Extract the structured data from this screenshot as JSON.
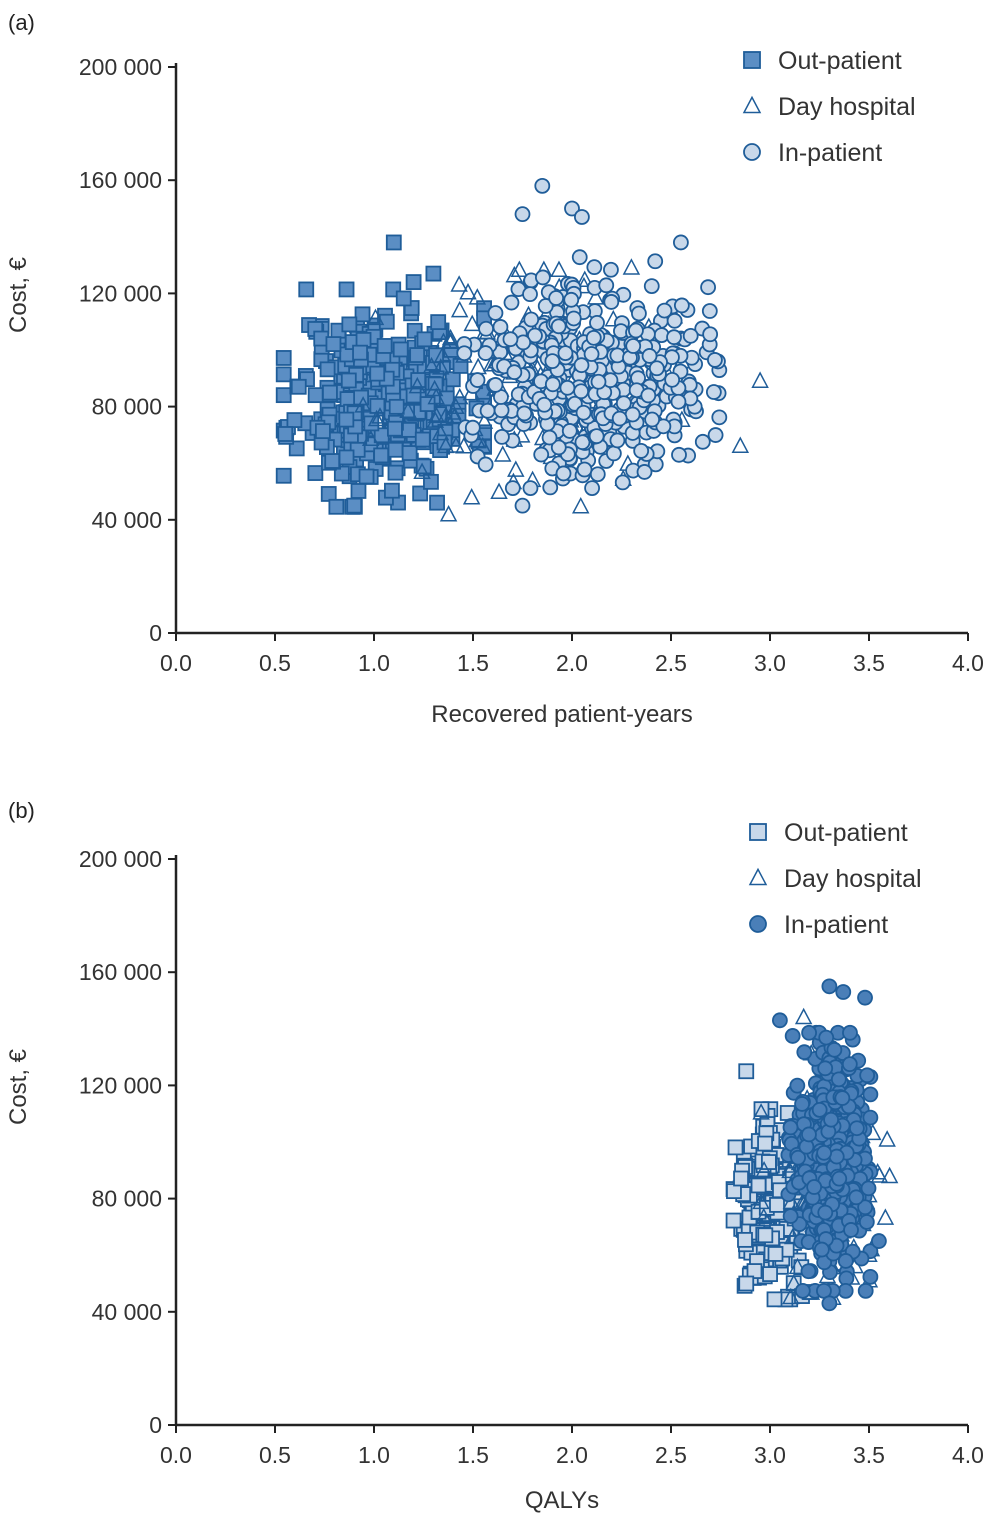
{
  "chart_data": [
    {
      "type": "scatter",
      "panel_label": "(a)",
      "xlabel": "Recovered patient-years",
      "ylabel": "Cost, €",
      "xlim": [
        0,
        4
      ],
      "ylim": [
        0,
        200000
      ],
      "x_ticks": [
        "0.0",
        "0.5",
        "1.0",
        "1.5",
        "2.0",
        "2.5",
        "3.0",
        "3.5",
        "4.0"
      ],
      "y_ticks": [
        "0",
        "40 000",
        "80 000",
        "120 000",
        "160 000",
        "200 000"
      ],
      "legend_position": "top-right",
      "series": [
        {
          "name": "Out-patient",
          "marker": "square",
          "fill": "#5b8ec4",
          "stroke": "#1f5d99",
          "cloud": {
            "x_mean": 1.05,
            "x_sd": 0.22,
            "y_mean": 83000,
            "y_sd": 16000,
            "n": 360,
            "seed": 11
          },
          "extra_points": [
            [
              1.1,
              138000
            ],
            [
              0.9,
              45000
            ],
            [
              1.3,
              127000
            ],
            [
              0.62,
              87000
            ],
            [
              1.2,
              124000
            ]
          ]
        },
        {
          "name": "Day hospital",
          "marker": "triangle",
          "fill": "none",
          "stroke": "#1f5d99",
          "cloud": {
            "x_mean": 1.75,
            "x_sd": 0.35,
            "y_mean": 85000,
            "y_sd": 18000,
            "n": 150,
            "seed": 23
          },
          "extra_points": [
            [
              2.95,
              89000
            ],
            [
              2.85,
              66000
            ],
            [
              1.43,
              123000
            ],
            [
              2.3,
              129000
            ]
          ]
        },
        {
          "name": "In-patient",
          "marker": "circle",
          "fill": "#c8d8ea",
          "stroke": "#1f5d99",
          "cloud": {
            "x_mean": 2.1,
            "x_sd": 0.28,
            "y_mean": 92000,
            "y_sd": 17000,
            "n": 460,
            "seed": 37
          },
          "extra_points": [
            [
              1.85,
              158000
            ],
            [
              2.0,
              150000
            ],
            [
              1.75,
              148000
            ],
            [
              2.05,
              147000
            ],
            [
              1.75,
              45000
            ],
            [
              2.55,
              138000
            ]
          ]
        }
      ]
    },
    {
      "type": "scatter",
      "panel_label": "(b)",
      "xlabel": "QALYs",
      "ylabel": "Cost, €",
      "xlim": [
        0,
        4
      ],
      "ylim": [
        0,
        200000
      ],
      "x_ticks": [
        "0.0",
        "0.5",
        "1.0",
        "1.5",
        "2.0",
        "2.5",
        "3.0",
        "3.5",
        "4.0"
      ],
      "y_ticks": [
        "0",
        "40 000",
        "80 000",
        "120 000",
        "160 000",
        "200 000"
      ],
      "legend_position": "top-right",
      "series": [
        {
          "name": "Out-patient",
          "marker": "square",
          "fill": "#c8d8ea",
          "stroke": "#1f5d99",
          "cloud": {
            "x_mean": 3.0,
            "x_sd": 0.08,
            "y_mean": 78000,
            "y_sd": 14000,
            "n": 260,
            "seed": 41
          },
          "extra_points": [
            [
              2.88,
              125000
            ],
            [
              2.88,
              50000
            ],
            [
              3.2,
              47000
            ]
          ]
        },
        {
          "name": "Day hospital",
          "marker": "triangle",
          "fill": "none",
          "stroke": "#1f5d99",
          "cloud": {
            "x_mean": 3.3,
            "x_sd": 0.15,
            "y_mean": 88000,
            "y_sd": 18000,
            "n": 130,
            "seed": 53
          },
          "extra_points": [
            [
              3.17,
              144000
            ],
            [
              3.5,
              60000
            ],
            [
              3.43,
              56000
            ]
          ]
        },
        {
          "name": "In-patient",
          "marker": "circle",
          "fill": "#4a7fb8",
          "stroke": "#1f5d99",
          "cloud": {
            "x_mean": 3.3,
            "x_sd": 0.09,
            "y_mean": 93000,
            "y_sd": 19000,
            "n": 460,
            "seed": 67
          },
          "extra_points": [
            [
              3.3,
              155000
            ],
            [
              3.37,
              153000
            ],
            [
              3.48,
              151000
            ],
            [
              3.3,
              43000
            ],
            [
              3.05,
              143000
            ],
            [
              3.55,
              65000
            ]
          ]
        }
      ]
    }
  ]
}
